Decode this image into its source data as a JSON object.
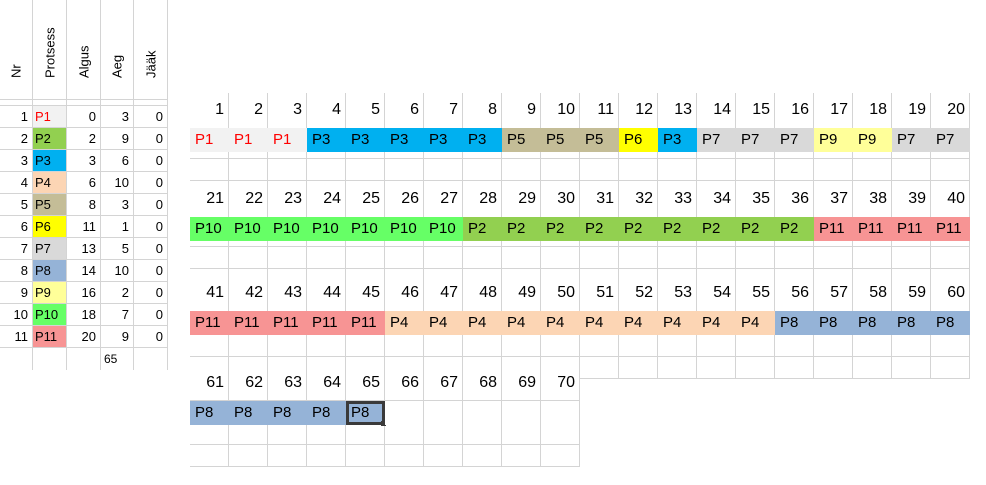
{
  "colors": {
    "P1": "#f2f2f2",
    "P2": "#92d050",
    "P3": "#00b0f0",
    "P4": "#fcd5b4",
    "P5": "#c4bd97",
    "P6": "#ffff00",
    "P7": "#d9d9d9",
    "P8": "#95b3d7",
    "P9": "#ffff99",
    "P10": "#66ff66",
    "P11": "#f79494",
    "P1_text": "#ff0000",
    "default_text": "#000000"
  },
  "table": {
    "headers": [
      "Nr",
      "Protsess",
      "Algus",
      "Aeg",
      "Jääk"
    ],
    "rows": [
      {
        "nr": "1",
        "name": "P1",
        "start": "0",
        "time": "3",
        "rem": "0"
      },
      {
        "nr": "2",
        "name": "P2",
        "start": "2",
        "time": "9",
        "rem": "0"
      },
      {
        "nr": "3",
        "name": "P3",
        "start": "3",
        "time": "6",
        "rem": "0"
      },
      {
        "nr": "4",
        "name": "P4",
        "start": "6",
        "time": "10",
        "rem": "0"
      },
      {
        "nr": "5",
        "name": "P5",
        "start": "8",
        "time": "3",
        "rem": "0"
      },
      {
        "nr": "6",
        "name": "P6",
        "start": "11",
        "time": "1",
        "rem": "0"
      },
      {
        "nr": "7",
        "name": "P7",
        "start": "13",
        "time": "5",
        "rem": "0"
      },
      {
        "nr": "8",
        "name": "P8",
        "start": "14",
        "time": "10",
        "rem": "0"
      },
      {
        "nr": "9",
        "name": "P9",
        "start": "16",
        "time": "2",
        "rem": "0"
      },
      {
        "nr": "10",
        "name": "P10",
        "start": "18",
        "time": "7",
        "rem": "0"
      },
      {
        "nr": "11",
        "name": "P11",
        "start": "20",
        "time": "9",
        "rem": "0"
      }
    ],
    "total": "65"
  },
  "gantt": {
    "rows": [
      {
        "numbers": [
          "1",
          "2",
          "3",
          "4",
          "5",
          "6",
          "7",
          "8",
          "9",
          "10",
          "11",
          "12",
          "13",
          "14",
          "15",
          "16",
          "17",
          "18",
          "19",
          "20"
        ],
        "procs": [
          "P1",
          "P1",
          "P1",
          "P3",
          "P3",
          "P3",
          "P3",
          "P3",
          "P5",
          "P5",
          "P5",
          "P6",
          "P3",
          "P7",
          "P7",
          "P7",
          "P9",
          "P9",
          "P7",
          "P7"
        ]
      },
      {
        "numbers": [
          "21",
          "22",
          "23",
          "24",
          "25",
          "26",
          "27",
          "28",
          "29",
          "30",
          "31",
          "32",
          "33",
          "34",
          "35",
          "36",
          "37",
          "38",
          "39",
          "40"
        ],
        "procs": [
          "P10",
          "P10",
          "P10",
          "P10",
          "P10",
          "P10",
          "P10",
          "P2",
          "P2",
          "P2",
          "P2",
          "P2",
          "P2",
          "P2",
          "P2",
          "P2",
          "P11",
          "P11",
          "P11",
          "P11"
        ]
      },
      {
        "numbers": [
          "41",
          "42",
          "43",
          "44",
          "45",
          "46",
          "47",
          "48",
          "49",
          "50",
          "51",
          "52",
          "53",
          "54",
          "55",
          "56",
          "57",
          "58",
          "59",
          "60"
        ],
        "procs": [
          "P11",
          "P11",
          "P11",
          "P11",
          "P11",
          "P4",
          "P4",
          "P4",
          "P4",
          "P4",
          "P4",
          "P4",
          "P4",
          "P4",
          "P4",
          "P8",
          "P8",
          "P8",
          "P8",
          "P8"
        ]
      },
      {
        "numbers": [
          "61",
          "62",
          "63",
          "64",
          "65",
          "66",
          "67",
          "68",
          "69",
          "70"
        ],
        "procs": [
          "P8",
          "P8",
          "P8",
          "P8",
          "P8",
          "",
          "",
          "",
          "",
          ""
        ]
      }
    ],
    "selected": {
      "row": 3,
      "col": 4
    }
  }
}
